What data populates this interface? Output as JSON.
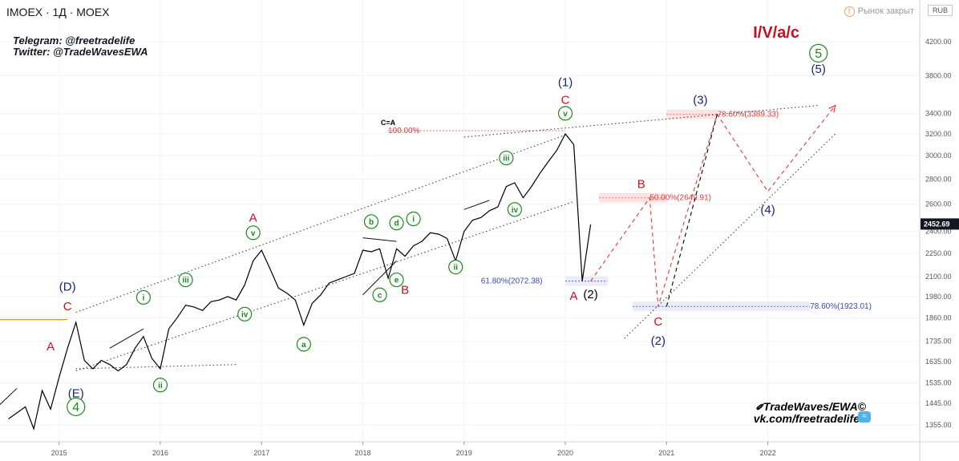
{
  "header": {
    "symbol_line": "IMOEX · 1Д · MOEX",
    "telegram": "Telegram: @freetradelife",
    "twitter": "Twitter: @TradeWavesEWA",
    "market_status": "Рынок закрыт",
    "currency": "RUB"
  },
  "footer_brand": {
    "line1": "TradeWaves/EWA©",
    "line2": "vk.com/freetradelife"
  },
  "colors": {
    "green": "#1b8a1b",
    "red": "#c1121f",
    "navy": "#1a237e",
    "grid": "#f0f3fa",
    "price_line": "#000000",
    "projection_red": "#e53935"
  },
  "chart_data": {
    "type": "line",
    "title": "",
    "xlabel": "",
    "ylabel": "",
    "y_scale": "log",
    "ylim": [
      1290,
      4750
    ],
    "x_range": [
      "2014-06",
      "2023-07"
    ],
    "current_price": "2452.69",
    "x_ticks": [
      "2015",
      "2016",
      "2017",
      "2018",
      "2019",
      "2020",
      "2021",
      "2022"
    ],
    "y_ticks": [
      "4200.00",
      "3800.00",
      "3400.00",
      "3200.00",
      "3000.00",
      "2800.00",
      "2600.00",
      "2400.00",
      "2250.00",
      "2100.00",
      "1980.00",
      "1860.00",
      "1735.00",
      "1635.00",
      "1535.00",
      "1445.00",
      "1355.00"
    ],
    "series": [
      {
        "points": [
          [
            "2014-07",
            1380
          ],
          [
            "2014-09",
            1430
          ],
          [
            "2014-10",
            1340
          ],
          [
            "2014-11",
            1500
          ],
          [
            "2014-12",
            1420
          ],
          [
            "2015-01",
            1560
          ],
          [
            "2015-02",
            1700
          ],
          [
            "2015-03",
            1835
          ],
          [
            "2015-04",
            1640
          ],
          [
            "2015-05",
            1600
          ],
          [
            "2015-06",
            1640
          ],
          [
            "2015-07",
            1620
          ],
          [
            "2015-08",
            1590
          ],
          [
            "2015-09",
            1620
          ],
          [
            "2015-10",
            1700
          ],
          [
            "2015-11",
            1760
          ],
          [
            "2015-12",
            1650
          ],
          [
            "2016-01",
            1600
          ],
          [
            "2016-02",
            1800
          ],
          [
            "2016-03",
            1860
          ],
          [
            "2016-04",
            1930
          ],
          [
            "2016-05",
            1920
          ],
          [
            "2016-06",
            1900
          ],
          [
            "2016-07",
            1950
          ],
          [
            "2016-08",
            1960
          ],
          [
            "2016-09",
            1980
          ],
          [
            "2016-10",
            1960
          ],
          [
            "2016-11",
            2050
          ],
          [
            "2016-12",
            2200
          ],
          [
            "2017-01",
            2270
          ],
          [
            "2017-02",
            2150
          ],
          [
            "2017-03",
            2030
          ],
          [
            "2017-04",
            2000
          ],
          [
            "2017-05",
            1960
          ],
          [
            "2017-06",
            1820
          ],
          [
            "2017-07",
            1940
          ],
          [
            "2017-08",
            1990
          ],
          [
            "2017-09",
            2060
          ],
          [
            "2017-10",
            2080
          ],
          [
            "2017-11",
            2100
          ],
          [
            "2017-12",
            2120
          ],
          [
            "2018-01",
            2270
          ],
          [
            "2018-02",
            2260
          ],
          [
            "2018-03",
            2280
          ],
          [
            "2018-04",
            2090
          ],
          [
            "2018-05",
            2280
          ],
          [
            "2018-06",
            2230
          ],
          [
            "2018-07",
            2300
          ],
          [
            "2018-08",
            2330
          ],
          [
            "2018-09",
            2390
          ],
          [
            "2018-10",
            2380
          ],
          [
            "2018-11",
            2350
          ],
          [
            "2018-12",
            2200
          ],
          [
            "2019-01",
            2400
          ],
          [
            "2019-02",
            2480
          ],
          [
            "2019-03",
            2500
          ],
          [
            "2019-04",
            2550
          ],
          [
            "2019-05",
            2580
          ],
          [
            "2019-06",
            2740
          ],
          [
            "2019-07",
            2770
          ],
          [
            "2019-08",
            2650
          ],
          [
            "2019-09",
            2740
          ],
          [
            "2019-10",
            2850
          ],
          [
            "2019-11",
            2950
          ],
          [
            "2019-12",
            3050
          ],
          [
            "2020-01",
            3200
          ],
          [
            "2020-02",
            3100
          ],
          [
            "2020-03",
            2072
          ],
          [
            "2020-04",
            2450
          ]
        ]
      }
    ],
    "annotations": [
      {
        "text": "(D)",
        "color": "navy",
        "circled": false,
        "size": "m",
        "at": [
          "2015-02",
          2040
        ]
      },
      {
        "text": "C",
        "color": "red",
        "circled": false,
        "size": "m",
        "at": [
          "2015-02",
          1925
        ]
      },
      {
        "text": "A",
        "color": "red",
        "circled": false,
        "size": "m",
        "at": [
          "2014-12",
          1710
        ]
      },
      {
        "text": "(E)",
        "color": "navy",
        "circled": false,
        "size": "m",
        "at": [
          "2015-03",
          1490
        ]
      },
      {
        "text": "4",
        "color": "green",
        "circled": true,
        "size": "l",
        "at": [
          "2015-03",
          1430
        ]
      },
      {
        "text": "i",
        "color": "green",
        "circled": true,
        "size": "s",
        "at": [
          "2015-11",
          1975
        ]
      },
      {
        "text": "ii",
        "color": "green",
        "circled": true,
        "size": "s",
        "at": [
          "2016-01",
          1525
        ]
      },
      {
        "text": "iii",
        "color": "green",
        "circled": true,
        "size": "s",
        "at": [
          "2016-04",
          2080
        ]
      },
      {
        "text": "iv",
        "color": "green",
        "circled": true,
        "size": "s",
        "at": [
          "2016-11",
          1880
        ]
      },
      {
        "text": "A",
        "color": "red",
        "circled": false,
        "size": "m",
        "at": [
          "2016-12",
          2500
        ]
      },
      {
        "text": "v",
        "color": "green",
        "circled": true,
        "size": "s",
        "at": [
          "2016-12",
          2390
        ]
      },
      {
        "text": "a",
        "color": "green",
        "circled": true,
        "size": "s",
        "at": [
          "2017-06",
          1720
        ]
      },
      {
        "text": "b",
        "color": "green",
        "circled": true,
        "size": "s",
        "at": [
          "2018-02",
          2470
        ]
      },
      {
        "text": "d",
        "color": "green",
        "circled": true,
        "size": "s",
        "at": [
          "2018-05",
          2460
        ]
      },
      {
        "text": "i",
        "color": "green",
        "circled": true,
        "size": "s",
        "at": [
          "2018-07",
          2490
        ]
      },
      {
        "text": "c",
        "color": "green",
        "circled": true,
        "size": "s",
        "at": [
          "2018-03",
          1990
        ]
      },
      {
        "text": "e",
        "color": "green",
        "circled": true,
        "size": "s",
        "at": [
          "2018-05",
          2080
        ]
      },
      {
        "text": "B",
        "color": "red",
        "circled": false,
        "size": "m",
        "at": [
          "2018-06",
          2020
        ]
      },
      {
        "text": "ii",
        "color": "green",
        "circled": true,
        "size": "s",
        "at": [
          "2018-12",
          2160
        ]
      },
      {
        "text": "iii",
        "color": "green",
        "circled": true,
        "size": "s",
        "at": [
          "2019-06",
          2980
        ]
      },
      {
        "text": "iv",
        "color": "green",
        "circled": true,
        "size": "s",
        "at": [
          "2019-07",
          2560
        ]
      },
      {
        "text": "v",
        "color": "green",
        "circled": true,
        "size": "s",
        "at": [
          "2020-01",
          3400
        ]
      },
      {
        "text": "C",
        "color": "red",
        "circled": false,
        "size": "m",
        "at": [
          "2020-01",
          3540
        ]
      },
      {
        "text": "(1)",
        "color": "navy",
        "circled": false,
        "size": "m",
        "at": [
          "2020-01",
          3730
        ]
      },
      {
        "text": "A",
        "color": "red",
        "circled": false,
        "size": "m",
        "at": [
          "2020-02",
          1985
        ]
      },
      {
        "text": "(2)",
        "color": "black",
        "circled": false,
        "size": "m",
        "at": [
          "2020-04",
          1995
        ]
      },
      {
        "text": "B",
        "color": "red",
        "circled": false,
        "size": "m",
        "at": [
          "2020-10",
          2760
        ]
      },
      {
        "text": "C",
        "color": "red",
        "circled": false,
        "size": "m",
        "at": [
          "2020-12",
          1840
        ]
      },
      {
        "text": "(2)",
        "color": "navy",
        "circled": false,
        "size": "m",
        "at": [
          "2020-12",
          1740
        ]
      },
      {
        "text": "(3)",
        "color": "navy",
        "circled": false,
        "size": "m",
        "at": [
          "2021-05",
          3540
        ]
      },
      {
        "text": "(4)",
        "color": "navy",
        "circled": false,
        "size": "m",
        "at": [
          "2022-01",
          2560
        ]
      },
      {
        "text": "(5)",
        "color": "navy",
        "circled": false,
        "size": "m",
        "at": [
          "2022-07",
          3880
        ]
      },
      {
        "text": "5",
        "color": "green",
        "circled": true,
        "size": "l",
        "at": [
          "2022-07",
          4060
        ]
      },
      {
        "text": "I/V/a/c",
        "color": "red",
        "circled": false,
        "size": "xl",
        "at": [
          "2022-02",
          4320
        ]
      },
      {
        "text": "C=A",
        "color": "black",
        "circled": false,
        "size": "xs",
        "at": [
          "2018-04",
          3310
        ]
      }
    ],
    "levels": [
      {
        "label": "100.00%",
        "value": 3230,
        "color": "red",
        "box": false,
        "x_from": "2018-04",
        "x_to": "2020-01",
        "label_at": "2018-04"
      },
      {
        "label": "78.60%(3389.33)",
        "value": 3389.33,
        "color": "red",
        "box": true,
        "x_from": "2021-01",
        "x_to": "2021-07",
        "label_at": "2021-07"
      },
      {
        "label": "50.00%(2649.91)",
        "value": 2649.91,
        "color": "red",
        "box": true,
        "x_from": "2020-05",
        "x_to": "2021-01",
        "label_at": "2020-11"
      },
      {
        "label": "61.80%(2072.38)",
        "value": 2072.38,
        "color": "blue",
        "box": true,
        "x_from": "2020-01",
        "x_to": "2020-06",
        "label_at": "2019-03"
      },
      {
        "label": "78.60%(1923.01)",
        "value": 1923.01,
        "color": "blue",
        "box": true,
        "x_from": "2020-09",
        "x_to": "2022-06",
        "label_at": "2022-06"
      }
    ],
    "trendlines": [
      {
        "kind": "dotted",
        "points": [
          [
            "2015-03",
            1890
          ],
          [
            "2020-01",
            3190
          ]
        ]
      },
      {
        "kind": "dotted",
        "points": [
          [
            "2015-03",
            1590
          ],
          [
            "2020-02",
            2620
          ]
        ]
      },
      {
        "kind": "dotted",
        "points": [
          [
            "2019-01",
            3170
          ],
          [
            "2022-07",
            3480
          ]
        ]
      },
      {
        "kind": "dotted",
        "points": [
          [
            "2015-03",
            1600
          ],
          [
            "2016-10",
            1620
          ]
        ]
      },
      {
        "kind": "dotted",
        "points": [
          [
            "2020-08",
            1750
          ],
          [
            "2022-09",
            3200
          ]
        ]
      },
      {
        "kind": "orange",
        "points": [
          [
            "2014-06",
            1850
          ],
          [
            "2015-02",
            1850
          ]
        ]
      },
      {
        "kind": "solid",
        "points": [
          [
            "2015-07",
            1700
          ],
          [
            "2015-11",
            1800
          ]
        ]
      },
      {
        "kind": "solid",
        "points": [
          [
            "2018-01",
            2355
          ],
          [
            "2018-05",
            2330
          ]
        ]
      },
      {
        "kind": "solid",
        "points": [
          [
            "2018-01",
            1990
          ],
          [
            "2018-05",
            2200
          ]
        ]
      },
      {
        "kind": "solid",
        "points": [
          [
            "2019-01",
            2560
          ],
          [
            "2019-04",
            2630
          ]
        ]
      },
      {
        "kind": "solid",
        "points": [
          [
            "2014-06",
            1440
          ],
          [
            "2014-08",
            1510
          ]
        ]
      }
    ],
    "projections": [
      {
        "color": "red",
        "points": [
          [
            "2020-04",
            2072
          ],
          [
            "2020-11",
            2649.91
          ],
          [
            "2020-12",
            1923
          ],
          [
            "2021-07",
            3389.33
          ],
          [
            "2022-01",
            2700
          ],
          [
            "2022-09",
            3480
          ]
        ]
      },
      {
        "color": "black",
        "points": [
          [
            "2021-01",
            1923
          ],
          [
            "2021-07",
            3389.33
          ]
        ]
      }
    ]
  }
}
